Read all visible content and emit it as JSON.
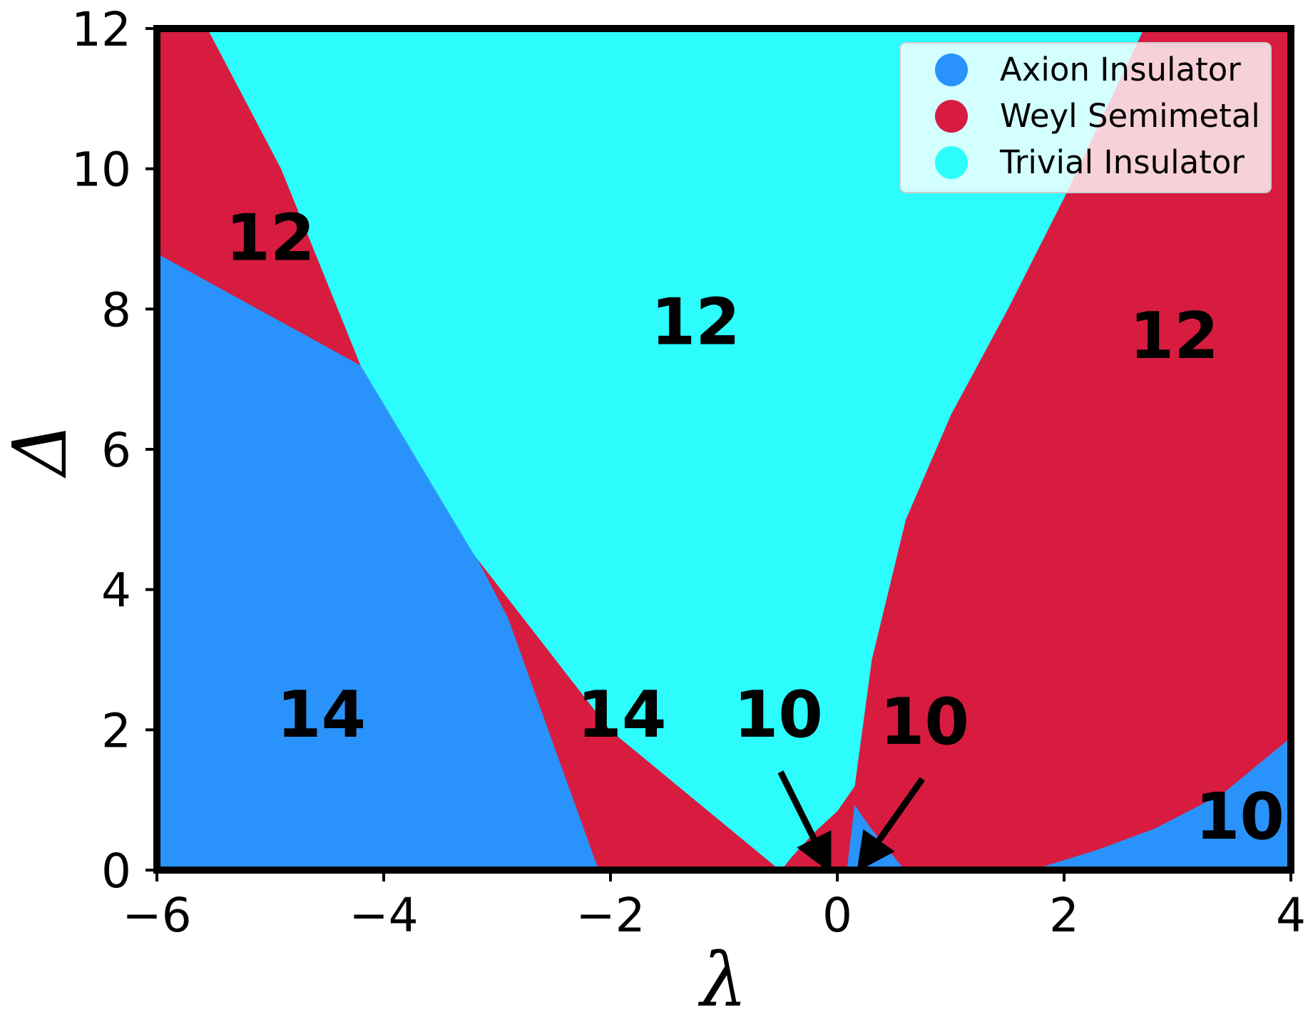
{
  "chart_data": {
    "type": "area",
    "xlabel": "λ",
    "ylabel": "Δ",
    "xlim": [
      -6,
      4
    ],
    "ylim": [
      0,
      12
    ],
    "x_ticks": [
      -6,
      -4,
      -2,
      0,
      2,
      4
    ],
    "x_tick_labels": [
      "−6",
      "−4",
      "−2",
      "0",
      "2",
      "4"
    ],
    "y_ticks": [
      0,
      2,
      4,
      6,
      8,
      10,
      12
    ],
    "y_tick_labels": [
      "0",
      "2",
      "4",
      "6",
      "8",
      "10",
      "12"
    ],
    "legend_position": "top-right",
    "series": [
      {
        "name": "Axion Insulator",
        "color": "#2a93fb",
        "regions": [
          [
            [
              -6,
              0
            ],
            [
              -6,
              8.8
            ],
            [
              -4.2,
              7.2
            ],
            [
              -3.8,
              6.4
            ],
            [
              -2.9,
              3.6
            ],
            [
              -2.1,
              0
            ]
          ],
          [
            [
              0.08,
              0
            ],
            [
              0.15,
              0.95
            ],
            [
              0.3,
              0.6
            ],
            [
              0.55,
              0.1
            ],
            [
              0.6,
              0
            ]
          ],
          [
            [
              1.7,
              0
            ],
            [
              2.3,
              0.3
            ],
            [
              2.8,
              0.6
            ],
            [
              3.4,
              1.1
            ],
            [
              4,
              1.9
            ],
            [
              4,
              0
            ]
          ]
        ]
      },
      {
        "name": "Weyl Semimetal",
        "color": "#d71c40",
        "regions": [
          [
            [
              -6,
              8.8
            ],
            [
              -6,
              12
            ],
            [
              -5.55,
              12
            ],
            [
              -4.9,
              10
            ],
            [
              -4.2,
              7.2
            ]
          ],
          [
            [
              -4.2,
              7.2
            ],
            [
              -3.8,
              6.4
            ],
            [
              -2.9,
              3.6
            ],
            [
              -2.1,
              0
            ],
            [
              -0.5,
              0
            ],
            [
              -2.0,
              2.0
            ],
            [
              -3.2,
              4.5
            ]
          ],
          [
            [
              -0.5,
              0
            ],
            [
              -0.4,
              0.2
            ],
            [
              -0.2,
              0.55
            ],
            [
              0.0,
              0.85
            ],
            [
              0.15,
              1.2
            ],
            [
              0.15,
              0.95
            ],
            [
              0.08,
              0
            ]
          ],
          [
            [
              0.15,
              1.2
            ],
            [
              0.3,
              3.0
            ],
            [
              0.6,
              5.0
            ],
            [
              1.0,
              6.5
            ],
            [
              1.5,
              8.0
            ],
            [
              2.0,
              9.6
            ],
            [
              2.7,
              12
            ],
            [
              4,
              12
            ],
            [
              4,
              1.9
            ],
            [
              3.4,
              1.1
            ],
            [
              2.8,
              0.6
            ],
            [
              2.3,
              0.3
            ],
            [
              1.7,
              0
            ],
            [
              0.6,
              0
            ],
            [
              0.55,
              0.1
            ],
            [
              0.3,
              0.6
            ],
            [
              0.15,
              0.95
            ]
          ]
        ]
      },
      {
        "name": "Trivial Insulator",
        "color": "#2cfcfc",
        "regions": [
          [
            [
              -5.55,
              12
            ],
            [
              -4.9,
              10
            ],
            [
              -4.2,
              7.2
            ],
            [
              -3.2,
              4.5
            ],
            [
              -2.0,
              2.0
            ],
            [
              -0.5,
              0
            ],
            [
              -0.4,
              0.2
            ],
            [
              -0.2,
              0.55
            ],
            [
              0.0,
              0.85
            ],
            [
              0.15,
              1.2
            ],
            [
              0.3,
              3.0
            ],
            [
              0.6,
              5.0
            ],
            [
              1.0,
              6.5
            ],
            [
              1.5,
              8.0
            ],
            [
              2.0,
              9.6
            ],
            [
              2.7,
              12
            ]
          ]
        ]
      }
    ],
    "annotations": [
      {
        "text": "12",
        "x": -5.0,
        "y": 8.7
      },
      {
        "text": "12",
        "x": -1.25,
        "y": 7.5
      },
      {
        "text": "12",
        "x": 2.97,
        "y": 7.3
      },
      {
        "text": "14",
        "x": -4.55,
        "y": 1.9
      },
      {
        "text": "14",
        "x": -1.9,
        "y": 1.9
      },
      {
        "text": "10",
        "x": -0.52,
        "y": 1.9
      },
      {
        "text": "10",
        "x": 0.77,
        "y": 1.8
      },
      {
        "text": "10",
        "x": 3.55,
        "y": 0.45
      }
    ],
    "arrows": [
      {
        "from": [
          -0.5,
          1.4
        ],
        "to": [
          -0.13,
          0.2
        ]
      },
      {
        "from": [
          0.75,
          1.3
        ],
        "to": [
          0.27,
          0.2
        ]
      }
    ]
  }
}
